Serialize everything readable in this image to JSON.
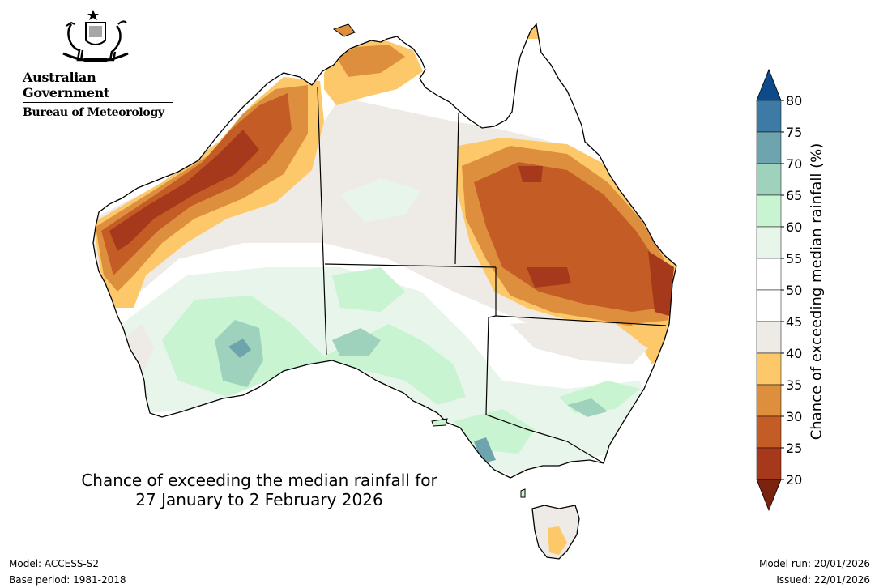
{
  "header": {
    "gov_name": "Australian Government",
    "bureau_name": "Bureau of Meteorology"
  },
  "map": {
    "title_line1": "Chance of exceeding the median rainfall for",
    "title_line2": "27 January to 2 February 2026",
    "region": "Australia"
  },
  "legend": {
    "title": "Chance of exceeding median rainfall (%)",
    "ticks": [
      "80",
      "75",
      "70",
      "65",
      "60",
      "55",
      "50",
      "45",
      "40",
      "35",
      "30",
      "25",
      "20"
    ],
    "bins": [
      {
        "range": "> 80",
        "color": "#0c4a8a"
      },
      {
        "range": "75-80",
        "color": "#3d7aa6"
      },
      {
        "range": "70-75",
        "color": "#6ea4ad"
      },
      {
        "range": "65-70",
        "color": "#9fd2bd"
      },
      {
        "range": "60-65",
        "color": "#c9f4d2"
      },
      {
        "range": "55-60",
        "color": "#e8f5ea"
      },
      {
        "range": "50-55",
        "color": "#ffffff"
      },
      {
        "range": "45-50",
        "color": "#ffffff"
      },
      {
        "range": "40-45",
        "color": "#eeeae5"
      },
      {
        "range": "35-40",
        "color": "#fdc86a"
      },
      {
        "range": "30-35",
        "color": "#de8f3e"
      },
      {
        "range": "25-30",
        "color": "#c45c25"
      },
      {
        "range": "20-25",
        "color": "#a6391b"
      },
      {
        "range": "< 20",
        "color": "#7a2410"
      }
    ]
  },
  "footer": {
    "model": "Model: ACCESS-S2",
    "base_period": "Base period: 1981-2018",
    "model_run": "Model run: 20/01/2026",
    "issued": "Issued: 22/01/2026"
  }
}
